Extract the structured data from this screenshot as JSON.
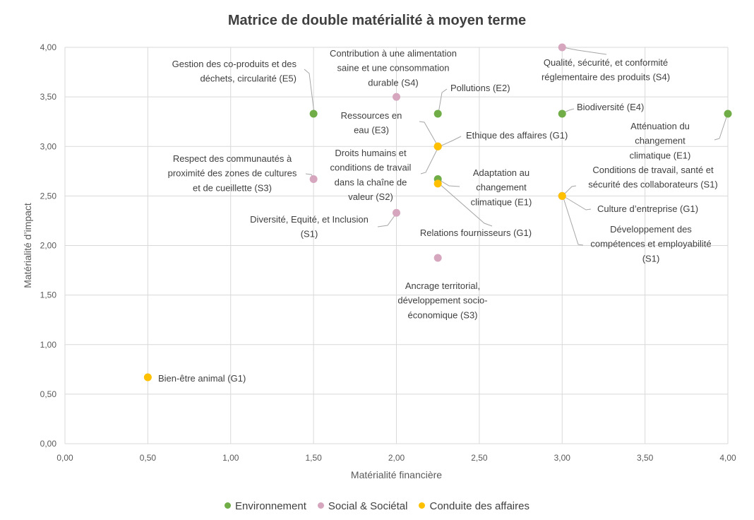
{
  "chart_data": {
    "type": "scatter",
    "title": "Matrice de double matérialité à moyen terme",
    "xlabel": "Matérialité financière",
    "ylabel": "Matérialité d’impact",
    "xlim": [
      0,
      4
    ],
    "ylim": [
      0,
      4
    ],
    "x_ticks": [
      "0,00",
      "0,50",
      "1,00",
      "1,50",
      "2,00",
      "2,50",
      "3,00",
      "3,50",
      "4,00"
    ],
    "y_ticks": [
      "0,00",
      "0,50",
      "1,00",
      "1,50",
      "2,00",
      "2,50",
      "3,00",
      "3,50",
      "4,00"
    ],
    "grid": true,
    "legend_position": "bottom",
    "series": [
      {
        "name": "Environnement",
        "color": "#70ad47",
        "points": [
          {
            "x": 1.5,
            "y": 3.33,
            "label": [
              "Gestion des co-produits et des",
              "déchets, circularité (E5)"
            ]
          },
          {
            "x": 2.25,
            "y": 3.33,
            "label": [
              "Pollutions (E2)"
            ]
          },
          {
            "x": 3.0,
            "y": 3.33,
            "label": [
              "Biodiversité (E4)"
            ]
          },
          {
            "x": 4.0,
            "y": 3.33,
            "label": [
              "Atténuation du",
              "changement",
              "climatique (E1)"
            ]
          },
          {
            "x": 2.25,
            "y": 2.67,
            "label": [
              "Adaptation au",
              "changement",
              "climatique (E1)"
            ]
          }
        ]
      },
      {
        "name": "Social & Sociétal",
        "color": "#d5a6bd",
        "points": [
          {
            "x": 2.0,
            "y": 3.5,
            "label": [
              "Contribution à une alimentation",
              "saine et une consommation",
              "durable (S4)"
            ]
          },
          {
            "x": 3.0,
            "y": 4.0,
            "label": [
              "Qualité, sécurité, et conformité",
              "réglementaire des produits (S4)"
            ]
          },
          {
            "x": 1.5,
            "y": 2.67,
            "label": [
              "Respect des communautés à",
              "proximité des zones de cultures",
              "et de cueillette (S3)"
            ]
          },
          {
            "x": 2.25,
            "y": 3.0,
            "label": [
              "Droits humains et",
              "conditions de travail",
              "dans la chaîne de",
              "valeur (S2)"
            ]
          },
          {
            "x": 2.0,
            "y": 2.33,
            "label": [
              "Diversité, Equité, et Inclusion",
              "(S1)"
            ]
          },
          {
            "x": 2.25,
            "y": 1.875,
            "label": [
              "Ancrage territorial,",
              "développement socio-",
              "économique (S3)"
            ]
          },
          {
            "x": 3.0,
            "y": 2.5,
            "label": [
              "Conditions de travail, santé et",
              "sécurité des collaborateurs (S1)"
            ]
          },
          {
            "x": 3.0,
            "y": 2.5,
            "label": [
              "Développement des",
              "compétences et employabilité",
              "(S1)"
            ]
          }
        ]
      },
      {
        "name": "Conduite des affaires",
        "color": "#ffc000",
        "points": [
          {
            "x": 2.25,
            "y": 3.0,
            "label": [
              "Ethique des affaires (G1)"
            ]
          },
          {
            "x": 2.25,
            "y": 3.0,
            "label": [
              "Ressources en",
              "eau (E3)"
            ]
          },
          {
            "x": 2.25,
            "y": 2.625,
            "label": [
              "Relations fournisseurs (G1)"
            ]
          },
          {
            "x": 3.0,
            "y": 2.5,
            "label": [
              "Culture d’entreprise (G1)"
            ]
          },
          {
            "x": 0.5,
            "y": 0.67,
            "label": [
              "Bien-être animal (G1)"
            ]
          }
        ]
      }
    ]
  }
}
